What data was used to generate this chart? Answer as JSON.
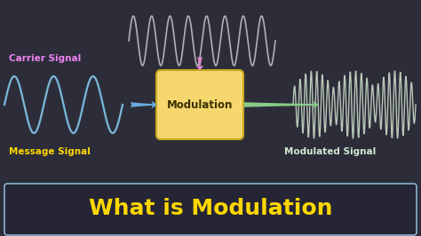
{
  "title": "What is Modulation",
  "title_color": "#FFD700",
  "title_fontsize": 18,
  "bg_color": "#2d2d3a",
  "title_box_edge_color": "#8ab4cc",
  "title_box_face_color": "#252535",
  "msg_label": "Message Signal",
  "msg_label_color": "#FFD700",
  "carrier_label": "Carrier Signal",
  "carrier_label_color": "#EE82EE",
  "mod_label": "Modulated Signal",
  "mod_label_color": "#d0e8d0",
  "box_label": "Modulation",
  "box_color": "#F5D76E",
  "box_edge_color": "#C8A820",
  "msg_wave_color": "#7ab8d8",
  "carrier_wave_color": "#b0b0b8",
  "mod_wave_color": "#b8c8b8",
  "arrow_right_color": "#6aaedd",
  "arrow_up_color": "#dd88cc",
  "arrow_out_color": "#88cc88",
  "figsize": [
    4.74,
    2.66
  ],
  "dpi": 100
}
